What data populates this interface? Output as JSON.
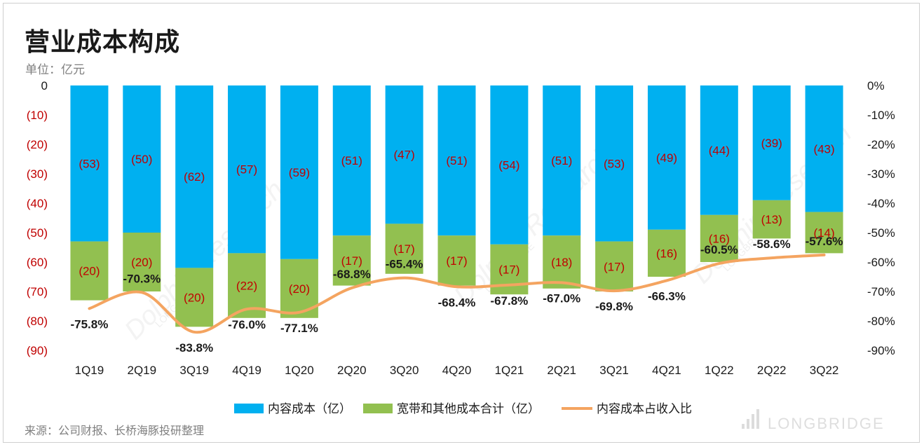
{
  "title": "营业成本构成",
  "unit": "单位：亿元",
  "source": "来源：公司财报、长桥海豚投研整理",
  "watermark": {
    "text_1": "Dolphin Research",
    "text_2": "LONGBRIDGE",
    "brand": "LONGBRIDGE"
  },
  "colors": {
    "content": "#00B0F0",
    "broadband": "#92C050",
    "ratio_line": "#F4A460",
    "bar_label": "#C00000",
    "left_tick": "#C00000"
  },
  "chart_data": {
    "type": "bar",
    "stacked": true,
    "categories": [
      "1Q19",
      "2Q19",
      "3Q19",
      "4Q19",
      "1Q20",
      "2Q20",
      "3Q20",
      "4Q20",
      "1Q21",
      "2Q21",
      "3Q21",
      "4Q21",
      "1Q22",
      "2Q22",
      "3Q22"
    ],
    "series": [
      {
        "name": "内容成本（亿）",
        "values": [
          -53,
          -50,
          -62,
          -57,
          -59,
          -51,
          -47,
          -51,
          -54,
          -51,
          -53,
          -49,
          -44,
          -39,
          -43
        ],
        "labels": [
          "(53)",
          "(50)",
          "(62)",
          "(57)",
          "(59)",
          "(51)",
          "(47)",
          "(51)",
          "(54)",
          "(51)",
          "(53)",
          "(49)",
          "(44)",
          "(39)",
          "(43)"
        ]
      },
      {
        "name": "宽带和其他成本合计（亿）",
        "values": [
          -20,
          -20,
          -20,
          -22,
          -20,
          -17,
          -17,
          -17,
          -17,
          -18,
          -17,
          -16,
          -16,
          -13,
          -14
        ],
        "labels": [
          "(20)",
          "(20)",
          "(20)",
          "(22)",
          "(20)",
          "(17)",
          "(17)",
          "(17)",
          "(17)",
          "(18)",
          "(17)",
          "(16)",
          "(16)",
          "(13)",
          "(14)"
        ]
      },
      {
        "name": "内容成本占收入比",
        "type": "line",
        "axis": "right",
        "values": [
          -75.8,
          -70.3,
          -83.8,
          -76.0,
          -77.1,
          -68.8,
          -65.4,
          -68.4,
          -67.8,
          -67.0,
          -69.8,
          -66.3,
          -60.5,
          -58.6,
          -57.6
        ],
        "labels": [
          "-75.8%",
          "-70.3%",
          "-83.8%",
          "-76.0%",
          "-77.1%",
          "-68.8%",
          "-65.4%",
          "-68.4%",
          "-67.8%",
          "-67.0%",
          "-69.8%",
          "-66.3%",
          "-60.5%",
          "-58.6%",
          "-57.6%"
        ]
      }
    ],
    "y_left": {
      "ylim": [
        -90,
        0
      ],
      "ticks": [
        0,
        -10,
        -20,
        -30,
        -40,
        -50,
        -60,
        -70,
        -80,
        -90
      ],
      "tick_labels": [
        "0",
        "(10)",
        "(20)",
        "(30)",
        "(40)",
        "(50)",
        "(60)",
        "(70)",
        "(80)",
        "(90)"
      ]
    },
    "y_right": {
      "ylim": [
        -90,
        0
      ],
      "ticks": [
        0,
        -10,
        -20,
        -30,
        -40,
        -50,
        -60,
        -70,
        -80,
        -90
      ],
      "tick_labels": [
        "0%",
        "-10%",
        "-20%",
        "-30%",
        "-40%",
        "-50%",
        "-60%",
        "-70%",
        "-80%",
        "-90%"
      ]
    },
    "grid": false,
    "legend_position": "bottom"
  }
}
